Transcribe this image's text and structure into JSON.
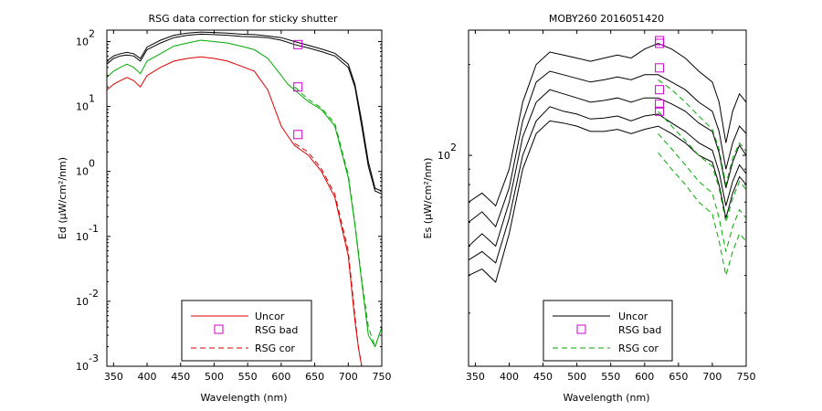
{
  "chart_data": [
    {
      "type": "line",
      "title": "RSG data correction for sticky shutter",
      "xlabel": "Wavelength (nm)",
      "ylabel": "Ed (µW/cm²/nm)",
      "xlim": [
        340,
        750
      ],
      "ylim": [
        0.001,
        150
      ],
      "y_scale": "log",
      "x_ticks": [
        350,
        400,
        450,
        500,
        550,
        600,
        650,
        700,
        750
      ],
      "y_ticks": [
        {
          "value": 100,
          "base": "10",
          "exp": "2"
        },
        {
          "value": 10,
          "base": "10",
          "exp": "1"
        },
        {
          "value": 1,
          "base": "10",
          "exp": "0"
        },
        {
          "value": 0.1,
          "base": "10",
          "exp": "-1"
        },
        {
          "value": 0.01,
          "base": "10",
          "exp": "-2"
        },
        {
          "value": 0.001,
          "base": "10",
          "exp": "-3"
        }
      ],
      "legend": {
        "placement": "bottom-center",
        "entries": [
          {
            "label": "Uncor",
            "style": "solid"
          },
          {
            "label": "RSG bad",
            "style": "marker"
          },
          {
            "label": "RSG cor",
            "style": "dashed"
          }
        ]
      },
      "series": [
        {
          "color": "#000000",
          "style": "solid",
          "x": [
            340,
            350,
            360,
            370,
            380,
            390,
            400,
            420,
            440,
            460,
            480,
            500,
            520,
            540,
            560,
            580,
            600,
            620,
            640,
            660,
            680,
            700,
            710,
            720,
            730,
            740,
            750
          ],
          "y": [
            45,
            55,
            60,
            62,
            60,
            50,
            75,
            95,
            115,
            125,
            130,
            128,
            125,
            120,
            118,
            115,
            105,
            90,
            80,
            70,
            60,
            40,
            20,
            5,
            1.2,
            0.5,
            0.45
          ]
        },
        {
          "color": "#00aa00",
          "style": "solid",
          "x": [
            340,
            350,
            360,
            370,
            380,
            390,
            400,
            420,
            440,
            460,
            480,
            500,
            520,
            540,
            560,
            580,
            600,
            610,
            620,
            640,
            660,
            680,
            700,
            710,
            720,
            730,
            740,
            750
          ],
          "y": [
            28,
            35,
            40,
            45,
            40,
            32,
            50,
            65,
            85,
            95,
            105,
            100,
            95,
            85,
            75,
            55,
            30,
            22,
            18,
            12,
            9,
            5,
            0.8,
            0.15,
            0.02,
            0.003,
            0.002,
            0.004
          ]
        },
        {
          "color": "#dd0000",
          "style": "solid",
          "x": [
            340,
            350,
            360,
            370,
            380,
            390,
            400,
            420,
            440,
            460,
            480,
            500,
            520,
            540,
            560,
            580,
            600,
            610,
            620,
            640,
            660,
            680,
            700,
            710,
            715,
            720,
            730,
            740,
            750
          ],
          "y": [
            18,
            22,
            25,
            28,
            25,
            20,
            30,
            40,
            50,
            55,
            58,
            55,
            50,
            42,
            35,
            18,
            5,
            3.5,
            2.5,
            1.8,
            1,
            0.4,
            0.05,
            0.005,
            0.002,
            0.001,
            0.001,
            0.001,
            0.001
          ]
        },
        {
          "color": "#000000",
          "style": "solid",
          "x": [
            340,
            350,
            360,
            370,
            380,
            390,
            400,
            420,
            440,
            460,
            480,
            500,
            520,
            540,
            560,
            580,
            600,
            620,
            640,
            660,
            680,
            700,
            710,
            720,
            730,
            740,
            750
          ],
          "y": [
            50,
            60,
            65,
            68,
            65,
            55,
            82,
            105,
            125,
            135,
            140,
            138,
            135,
            130,
            128,
            122,
            115,
            100,
            88,
            77,
            66,
            45,
            22,
            6,
            1.4,
            0.55,
            0.5
          ]
        },
        {
          "color": "#00aa00",
          "style": "dashed",
          "x": [
            620,
            640,
            660,
            680,
            700,
            710,
            720,
            730,
            740,
            750
          ],
          "y": [
            20,
            13,
            9.5,
            5.5,
            0.9,
            0.16,
            0.022,
            0.004,
            0.002,
            0.004
          ]
        },
        {
          "color": "#dd0000",
          "style": "dashed",
          "x": [
            620,
            640,
            660,
            680,
            700,
            710,
            715,
            720,
            730,
            740,
            750
          ],
          "y": [
            2.7,
            2,
            1.1,
            0.45,
            0.06,
            0.006,
            0.002,
            0.001,
            0.001,
            0.001,
            0.001
          ]
        }
      ],
      "bad_points": [
        {
          "x": 625,
          "y": 90
        },
        {
          "x": 625,
          "y": 20
        },
        {
          "x": 625,
          "y": 3.7
        }
      ]
    },
    {
      "type": "line",
      "title": "MOBY260  2016051420",
      "xlabel": "Wavelength (nm)",
      "ylabel": "Es (µW/cm²/nm)",
      "xlim": [
        340,
        750
      ],
      "ylim": [
        20,
        260
      ],
      "y_scale": "log",
      "x_ticks": [
        350,
        400,
        450,
        500,
        550,
        600,
        650,
        700,
        750
      ],
      "y_ticks": [
        {
          "value": 100,
          "base": "10",
          "exp": "2"
        }
      ],
      "legend": {
        "placement": "bottom-center",
        "entries": [
          {
            "label": "Uncor",
            "style": "solid"
          },
          {
            "label": "RSG bad",
            "style": "marker"
          },
          {
            "label": "RSG cor",
            "style": "dashed"
          }
        ]
      },
      "series": [
        {
          "color": "#000000",
          "style": "solid",
          "x": [
            340,
            360,
            380,
            400,
            420,
            440,
            460,
            480,
            500,
            520,
            540,
            560,
            580,
            600,
            620,
            640,
            660,
            680,
            700,
            710,
            720,
            730,
            740,
            750
          ],
          "y": [
            70,
            75,
            68,
            90,
            150,
            200,
            220,
            215,
            210,
            205,
            210,
            215,
            210,
            225,
            235,
            225,
            210,
            190,
            175,
            150,
            110,
            140,
            160,
            150
          ]
        },
        {
          "color": "#000000",
          "style": "solid",
          "x": [
            340,
            360,
            380,
            400,
            420,
            440,
            460,
            480,
            500,
            520,
            540,
            560,
            580,
            600,
            620,
            640,
            660,
            680,
            700,
            710,
            720,
            730,
            740,
            750
          ],
          "y": [
            60,
            65,
            58,
            78,
            130,
            175,
            190,
            185,
            180,
            175,
            178,
            182,
            178,
            185,
            185,
            175,
            165,
            150,
            140,
            120,
            90,
            110,
            125,
            118
          ]
        },
        {
          "color": "#000000",
          "style": "solid",
          "x": [
            340,
            360,
            380,
            400,
            420,
            440,
            460,
            480,
            500,
            520,
            540,
            560,
            580,
            600,
            620,
            640,
            660,
            680,
            700,
            710,
            720,
            730,
            740,
            750
          ],
          "y": [
            50,
            55,
            50,
            70,
            115,
            150,
            165,
            160,
            155,
            150,
            152,
            155,
            150,
            155,
            155,
            148,
            140,
            128,
            120,
            102,
            78,
            95,
            108,
            100
          ]
        },
        {
          "color": "#000000",
          "style": "solid",
          "x": [
            340,
            360,
            380,
            400,
            420,
            440,
            460,
            480,
            500,
            520,
            540,
            560,
            580,
            600,
            620,
            640,
            660,
            680,
            700,
            710,
            720,
            730,
            740,
            750
          ],
          "y": [
            45,
            48,
            44,
            62,
            100,
            130,
            145,
            140,
            137,
            132,
            133,
            135,
            130,
            135,
            137,
            128,
            120,
            110,
            104,
            88,
            68,
            82,
            93,
            87
          ]
        },
        {
          "color": "#000000",
          "style": "solid",
          "x": [
            340,
            360,
            380,
            400,
            420,
            440,
            460,
            480,
            500,
            520,
            540,
            560,
            580,
            600,
            620,
            640,
            660,
            680,
            700,
            710,
            720,
            730,
            740,
            750
          ],
          "y": [
            40,
            42,
            38,
            55,
            90,
            118,
            130,
            128,
            125,
            120,
            120,
            122,
            118,
            122,
            125,
            118,
            110,
            100,
            95,
            80,
            62,
            75,
            85,
            80
          ]
        },
        {
          "color": "#00aa00",
          "style": "dashed",
          "x": [
            620,
            640,
            660,
            680,
            700,
            710,
            720,
            730,
            740,
            750
          ],
          "y": [
            178,
            165,
            150,
            135,
            122,
            105,
            80,
            98,
            110,
            103
          ]
        },
        {
          "color": "#00aa00",
          "style": "dashed",
          "x": [
            620,
            640,
            660,
            680,
            700,
            710,
            720,
            730,
            740,
            750
          ],
          "y": [
            140,
            125,
            112,
            100,
            92,
            78,
            60,
            72,
            82,
            77
          ]
        },
        {
          "color": "#00aa00",
          "style": "dashed",
          "x": [
            620,
            640,
            660,
            680,
            700,
            710,
            720,
            730,
            740,
            750
          ],
          "y": [
            118,
            105,
            93,
            82,
            75,
            62,
            48,
            58,
            66,
            62
          ]
        },
        {
          "color": "#00aa00",
          "style": "dashed",
          "x": [
            620,
            640,
            660,
            680,
            700,
            710,
            720,
            730,
            740,
            750
          ],
          "y": [
            102,
            90,
            80,
            70,
            64,
            52,
            40,
            48,
            55,
            52
          ]
        }
      ],
      "bad_points": [
        {
          "x": 622,
          "y": 240
        },
        {
          "x": 622,
          "y": 235
        },
        {
          "x": 622,
          "y": 195
        },
        {
          "x": 622,
          "y": 165
        },
        {
          "x": 622,
          "y": 148
        },
        {
          "x": 622,
          "y": 140
        }
      ]
    }
  ]
}
